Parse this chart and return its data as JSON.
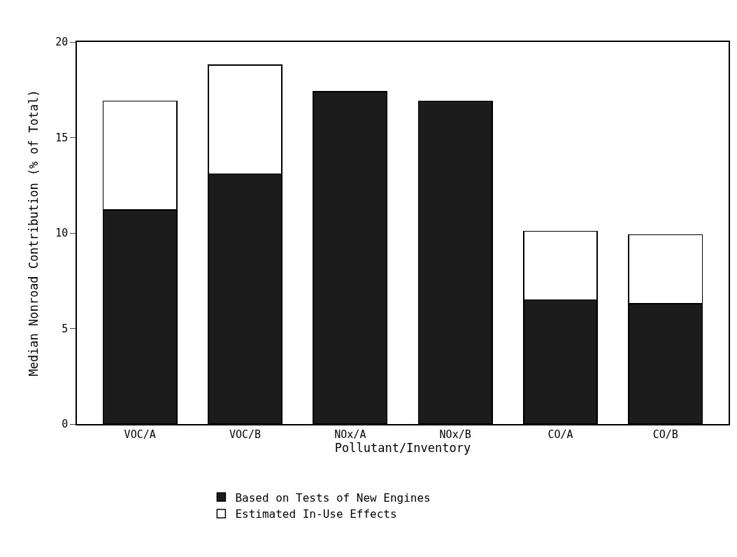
{
  "chart_data": {
    "type": "bar",
    "stacked": true,
    "xlabel": "Pollutant/Inventory",
    "ylabel": "Median Nonroad Contribution (% of Total)",
    "categories": [
      "VOC/A",
      "VOC/B",
      "NOx/A",
      "NOx/B",
      "CO/A",
      "CO/B"
    ],
    "series": [
      {
        "name": "Based on Tests of New Engines",
        "color": "#1c1c1c",
        "values": [
          11.2,
          13.1,
          17.4,
          16.9,
          6.5,
          6.3
        ]
      },
      {
        "name": "Estimated In-Use Effects",
        "color": "#ffffff",
        "values": [
          5.7,
          5.7,
          null,
          null,
          3.6,
          3.6
        ]
      }
    ],
    "ylim": [
      0,
      20
    ],
    "yticks": [
      0,
      5,
      10,
      15,
      20
    ],
    "legend": "bottom"
  }
}
